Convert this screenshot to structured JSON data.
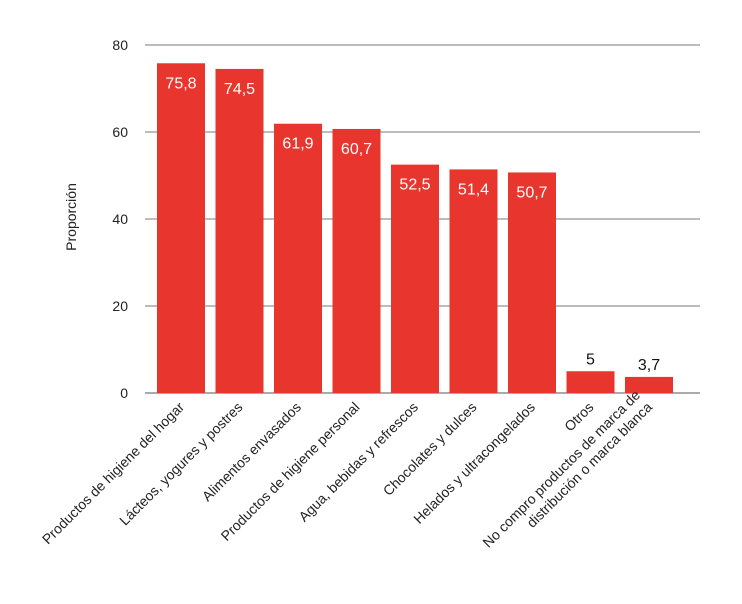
{
  "chart_data": {
    "type": "bar",
    "title": "",
    "xlabel": "",
    "ylabel": "Proporción",
    "ylim": [
      0,
      80
    ],
    "yticks": [
      0,
      20,
      40,
      60,
      80
    ],
    "grid": true,
    "bar_color": "#e8352e",
    "categories": [
      [
        "Productos de higiene del hogar"
      ],
      [
        "Lácteos, yogures y postres"
      ],
      [
        "Alimentos envasados"
      ],
      [
        "Productos de higiene personal"
      ],
      [
        "Agua, bebidas y refrescos"
      ],
      [
        "Chocolates y dulces"
      ],
      [
        "Helados y ultracongelados"
      ],
      [
        "Otros"
      ],
      [
        "No compro productos de marca de",
        "distribución o marca blanca"
      ]
    ],
    "values": [
      75.8,
      74.5,
      61.9,
      60.7,
      52.5,
      51.4,
      50.7,
      5,
      3.7
    ],
    "data_labels": [
      "75,8",
      "74,5",
      "61,9",
      "60,7",
      "52,5",
      "51,4",
      "50,7",
      "5",
      "3,7"
    ]
  }
}
